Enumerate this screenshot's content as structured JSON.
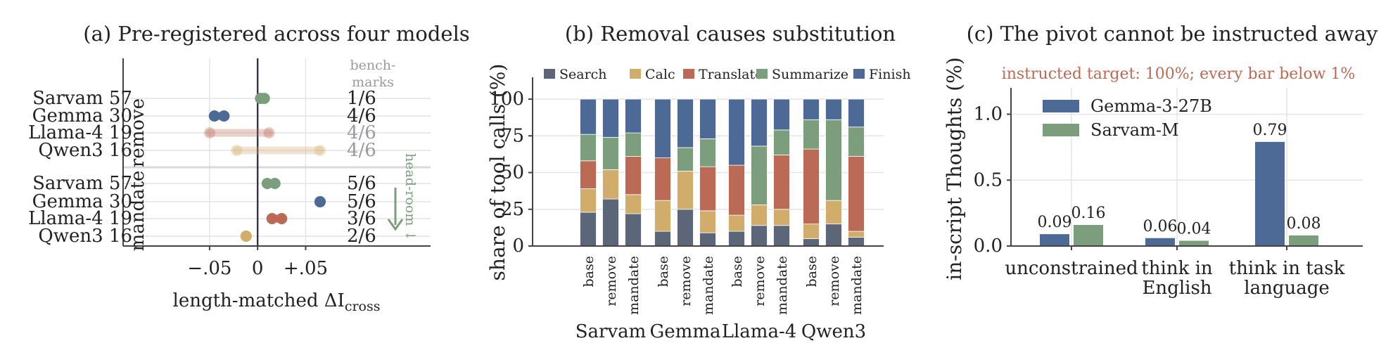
{
  "colors": {
    "search": "#5b6778",
    "calc": "#d2ac6a",
    "translate": "#bb6b55",
    "summarize": "#7c9e7c",
    "finish": "#4d6a97",
    "gemma": "#4d6a97",
    "sarvam": "#7c9e7c",
    "llama": "#bb6b55",
    "qwen": "#d2ac6a",
    "muted": "#9a9aa4",
    "headroom": "#7c9e7c",
    "target_note": "#bb6b55"
  },
  "chart_data": [
    {
      "id": "a",
      "type": "dumbbell",
      "title": "(a) Pre-registered across four models",
      "xlabel_main": "length-matched ΔI",
      "xlabel_sub": "cross",
      "xlim": [
        -0.14,
        0.18
      ],
      "xticks": [
        -0.05,
        0,
        0.05
      ],
      "xtick_labels": [
        "−.05",
        "0",
        "+.05"
      ],
      "benchmarks_header": "bench-\nmarks",
      "headroom_label": "head-room ↓",
      "groups": [
        {
          "name": "remove",
          "rows": [
            {
              "label": "Sarvam 57",
              "model": "sarvam",
              "from": 0.003,
              "to": 0.007,
              "benchmarks": "1/6",
              "faded": false
            },
            {
              "label": "Gemma 30",
              "model": "gemma",
              "from": -0.045,
              "to": -0.035,
              "benchmarks": "4/6",
              "faded": false
            },
            {
              "label": "Llama-4 19",
              "model": "llama",
              "from": -0.05,
              "to": 0.012,
              "benchmarks": "4/6",
              "faded": true
            },
            {
              "label": "Qwen3 16",
              "model": "qwen",
              "from": -0.022,
              "to": 0.065,
              "benchmarks": "4/6",
              "faded": true
            }
          ]
        },
        {
          "name": "mandate",
          "rows": [
            {
              "label": "Sarvam 57",
              "model": "sarvam",
              "from": 0.01,
              "to": 0.018,
              "benchmarks": "5/6",
              "faded": false
            },
            {
              "label": "Gemma 30",
              "model": "gemma",
              "from": 0.065,
              "to": 0.065,
              "benchmarks": "5/6",
              "faded": false
            },
            {
              "label": "Llama-4 19",
              "model": "llama",
              "from": 0.015,
              "to": 0.025,
              "benchmarks": "3/6",
              "faded": false
            },
            {
              "label": "Qwen3 16",
              "model": "qwen",
              "from": -0.012,
              "to": -0.012,
              "benchmarks": "2/6",
              "faded": false
            }
          ]
        }
      ]
    },
    {
      "id": "b",
      "type": "stacked_bar",
      "title": "(b) Removal causes substitution",
      "ylabel": "share of tool calls (%)",
      "ylim": [
        0,
        100
      ],
      "yticks": [
        0,
        25,
        50,
        75,
        100
      ],
      "legend": [
        "Search",
        "Calc",
        "Translate",
        "Summarize",
        "Finish"
      ],
      "legend_placement": "top",
      "conditions": [
        "base",
        "remove",
        "mandate"
      ],
      "groups": [
        {
          "name": "Sarvam",
          "stacks": [
            [
              23,
              16,
              19,
              18,
              24
            ],
            [
              32,
              20,
              0,
              22,
              26
            ],
            [
              22,
              13,
              26,
              16,
              23
            ]
          ]
        },
        {
          "name": "Gemma",
          "stacks": [
            [
              10,
              21,
              29,
              0,
              40
            ],
            [
              25,
              26,
              0,
              16,
              33
            ],
            [
              9,
              15,
              30,
              19,
              27
            ]
          ]
        },
        {
          "name": "Llama-4",
          "stacks": [
            [
              10,
              11,
              34,
              0,
              45
            ],
            [
              14,
              14,
              0,
              40,
              32
            ],
            [
              14,
              11,
              37,
              17,
              21
            ]
          ]
        },
        {
          "name": "Qwen3",
          "stacks": [
            [
              5,
              10,
              51,
              20,
              14
            ],
            [
              15,
              16,
              0,
              55,
              14
            ],
            [
              6,
              4,
              51,
              20,
              19
            ]
          ]
        }
      ]
    },
    {
      "id": "c",
      "type": "bar",
      "title": "(c) The pivot cannot be instructed away",
      "ylabel": "in-script Thoughts (%)",
      "ylim": [
        0,
        1.2
      ],
      "yticks": [
        0,
        0.5,
        1.0
      ],
      "ytick_labels": [
        "0.0",
        "0.5",
        "1.0"
      ],
      "note": "instructed target: 100%; every bar below 1%",
      "legend_placement": "upper-left",
      "categories": [
        "unconstrained",
        "think in\nEnglish",
        "think in task\nlanguage"
      ],
      "series": [
        {
          "name": "Gemma-3-27B",
          "color_key": "gemma",
          "values": [
            0.09,
            0.06,
            0.79
          ],
          "value_labels": [
            "0.09",
            "0.06",
            "0.79"
          ]
        },
        {
          "name": "Sarvam-M",
          "color_key": "sarvam",
          "values": [
            0.16,
            0.04,
            0.08
          ],
          "value_labels": [
            "0.16",
            "0.04",
            "0.08"
          ]
        }
      ]
    }
  ]
}
